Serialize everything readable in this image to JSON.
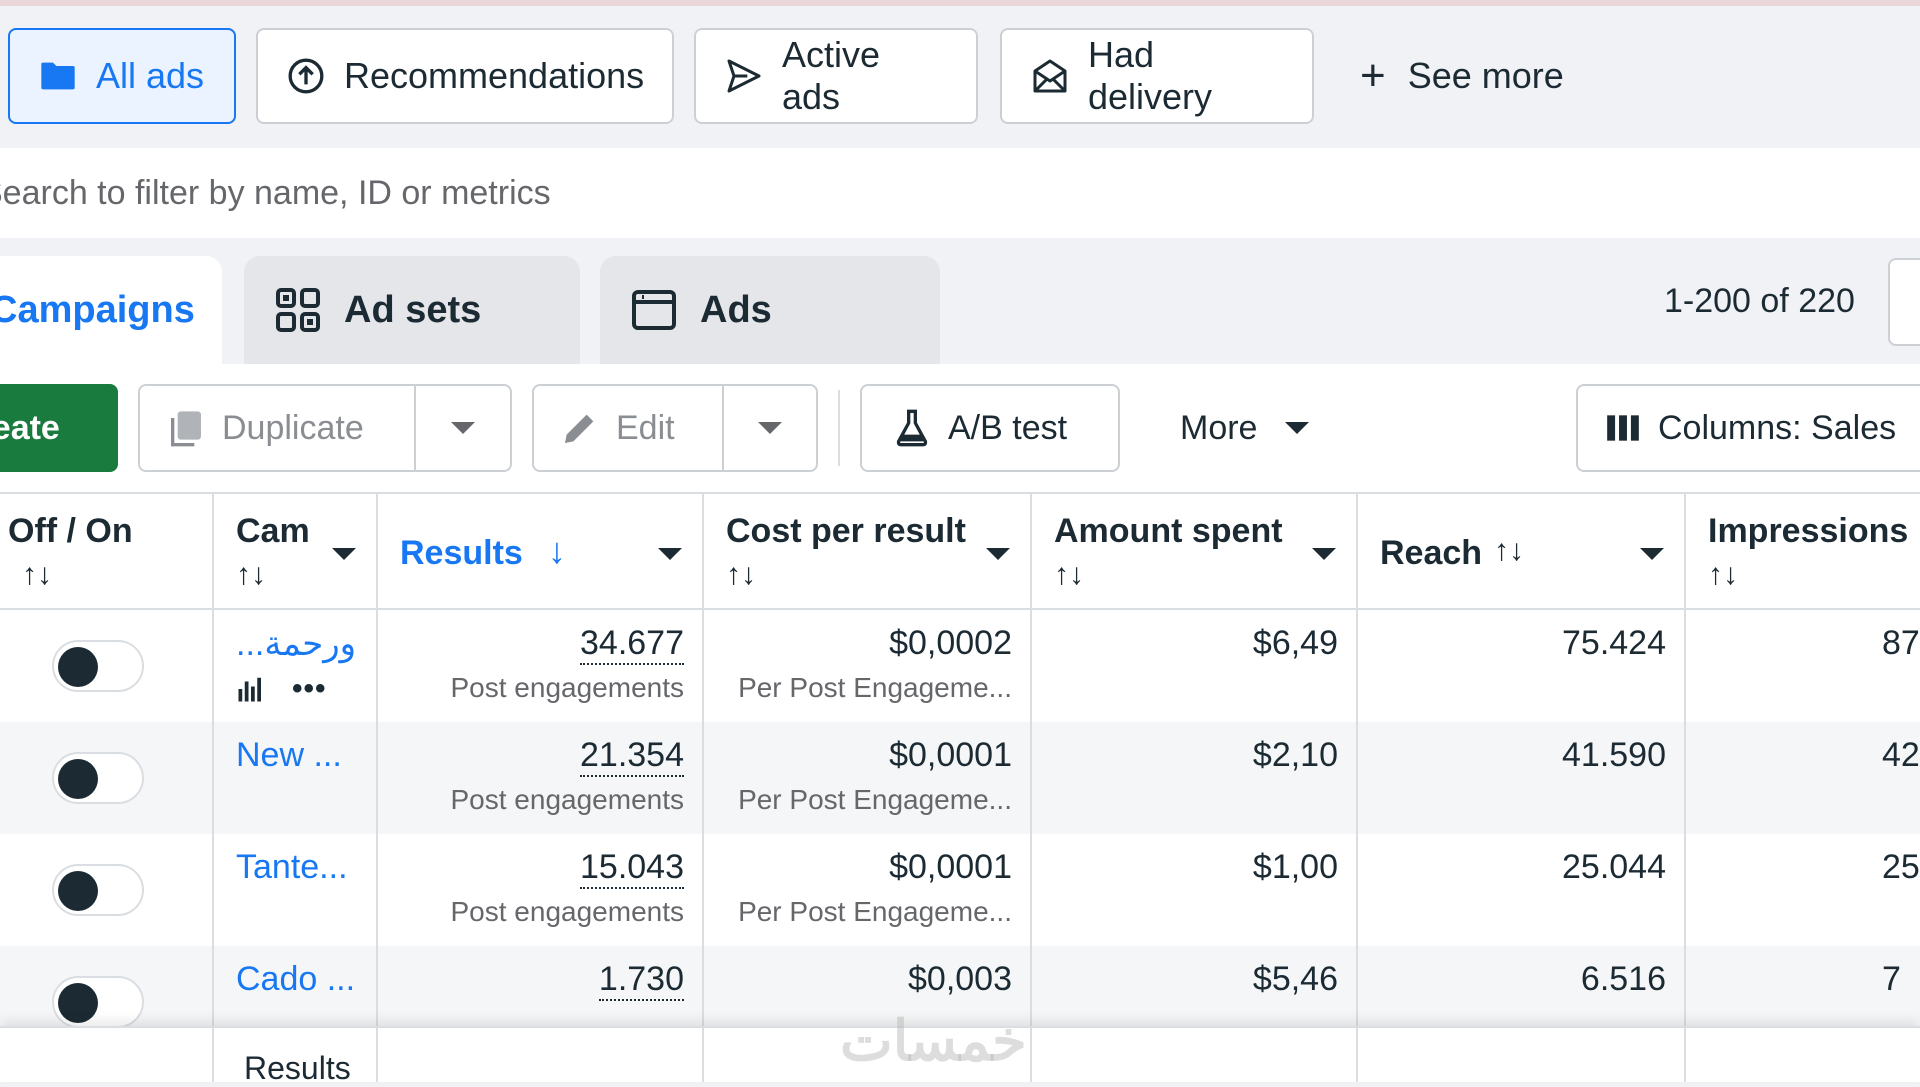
{
  "filters": {
    "chips": [
      {
        "label": "All ads",
        "icon": "folder-icon",
        "active": true
      },
      {
        "label": "Recommendations",
        "icon": "recommendation-icon"
      },
      {
        "label": "Active ads",
        "icon": "send-icon"
      },
      {
        "label": "Had delivery",
        "icon": "envelope-icon"
      }
    ],
    "see_more": "See more"
  },
  "search": {
    "placeholder": "Search to filter by name, ID or metrics"
  },
  "tabs": [
    {
      "label": "Campaigns",
      "active": true
    },
    {
      "label": "Ad sets",
      "icon": "adsets-icon"
    },
    {
      "label": "Ads",
      "icon": "ads-icon"
    }
  ],
  "pagination": {
    "label": "1-200 of 220"
  },
  "toolbar": {
    "create": "Create",
    "duplicate": "Duplicate",
    "edit": "Edit",
    "ab_test": "A/B test",
    "more": "More",
    "columns": "Columns: Sales"
  },
  "table": {
    "headers": {
      "off_on": "Off / On",
      "campaign": "Cam",
      "results": "Results",
      "cost_per_result": "Cost per result",
      "amount_spent": "Amount spent",
      "reach": "Reach",
      "impressions": "Impressions"
    },
    "sort_glyph": "↑↓",
    "rows": [
      {
        "name": "...ورحمة",
        "results": "34.677",
        "results_label": "Post engagements",
        "cost": "$0,0002",
        "cost_label": "Per Post Engageme...",
        "spent": "$6,49",
        "reach": "75.424",
        "impressions": "87",
        "on": false
      },
      {
        "name": "New ...",
        "results": "21.354",
        "results_label": "Post engagements",
        "cost": "$0,0001",
        "cost_label": "Per Post Engageme...",
        "spent": "$2,10",
        "reach": "41.590",
        "impressions": "42",
        "on": false
      },
      {
        "name": "Tante...",
        "results": "15.043",
        "results_label": "Post engagements",
        "cost": "$0,0001",
        "cost_label": "Per Post Engageme...",
        "spent": "$1,00",
        "reach": "25.044",
        "impressions": "25",
        "on": false
      },
      {
        "name": "Cado ...",
        "results": "1.730",
        "results_label": "",
        "cost": "$0,003",
        "cost_label": "",
        "spent": "$5,46",
        "reach": "6.516",
        "impressions": "7",
        "on": false
      }
    ],
    "footer_label": "Results"
  },
  "watermark": "خمسات",
  "colors": {
    "accent": "#1877f2",
    "create_green": "#1a7b3e"
  }
}
